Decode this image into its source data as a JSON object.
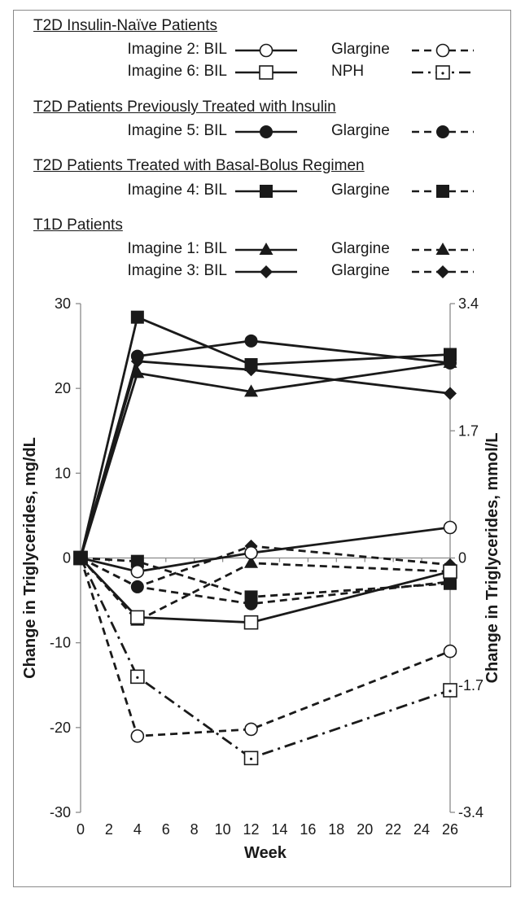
{
  "legend": {
    "groups": [
      {
        "header": "T2D Insulin-Naïve Patients",
        "rows": [
          {
            "left": {
              "label": "Imagine 2: BIL",
              "series": "i2-bil"
            },
            "right": {
              "label": "Glargine",
              "series": "i2-gla"
            }
          },
          {
            "left": {
              "label": "Imagine 6: BIL",
              "series": "i6-bil"
            },
            "right": {
              "label": "NPH",
              "series": "i6-nph"
            }
          }
        ]
      },
      {
        "header": "T2D Patients Previously Treated with Insulin",
        "rows": [
          {
            "left": {
              "label": "Imagine 5: BIL",
              "series": "i5-bil"
            },
            "right": {
              "label": "Glargine",
              "series": "i5-gla"
            }
          }
        ]
      },
      {
        "header": "T2D Patients Treated with Basal-Bolus Regimen",
        "rows": [
          {
            "left": {
              "label": "Imagine 4: BIL",
              "series": "i4-bil"
            },
            "right": {
              "label": "Glargine",
              "series": "i4-gla"
            }
          }
        ]
      },
      {
        "header": "T1D Patients",
        "rows": [
          {
            "left": {
              "label": "Imagine 1: BIL",
              "series": "i1-bil"
            },
            "right": {
              "label": "Glargine",
              "series": "i1-gla"
            }
          },
          {
            "left": {
              "label": "Imagine 3: BIL",
              "series": "i3-bil"
            },
            "right": {
              "label": "Glargine",
              "series": "i3-gla"
            }
          }
        ]
      }
    ]
  },
  "chart_data": {
    "type": "line",
    "xlabel": "Week",
    "ylabel": "Change in Triglycerides, mg/dL",
    "y2label": "Change in Triglycerides, mmol/L",
    "xlim": [
      0,
      26
    ],
    "ylim": [
      -30,
      30
    ],
    "y2lim": [
      -3.4,
      3.4
    ],
    "x_ticks": [
      "0",
      "2",
      "4",
      "6",
      "8",
      "10",
      "12",
      "14",
      "16",
      "18",
      "20",
      "22",
      "24",
      "26"
    ],
    "y_ticks": [
      "30",
      "20",
      "10",
      "0",
      "-10",
      "-20",
      "-30"
    ],
    "y2_ticks": [
      "3.4",
      "1.7",
      "0",
      "-1.7",
      "-3.4"
    ],
    "grid": false,
    "series": [
      {
        "id": "i2-bil",
        "marker": "open-circle",
        "dash": "solid",
        "x": [
          0,
          4,
          12,
          26
        ],
        "values": [
          0,
          -1.6,
          0.6,
          3.6
        ]
      },
      {
        "id": "i2-gla",
        "marker": "open-circle",
        "dash": "dashed",
        "x": [
          0,
          4,
          12,
          26
        ],
        "values": [
          0,
          -21.0,
          -20.2,
          -11.0
        ]
      },
      {
        "id": "i6-bil",
        "marker": "open-square",
        "dash": "solid",
        "x": [
          0,
          4,
          12,
          26
        ],
        "values": [
          0,
          -7.0,
          -7.6,
          -1.6
        ]
      },
      {
        "id": "i6-nph",
        "marker": "dotted-square",
        "dash": "dash-dot",
        "x": [
          0,
          4,
          12,
          26
        ],
        "values": [
          0,
          -14.0,
          -23.6,
          -15.6
        ]
      },
      {
        "id": "i5-bil",
        "marker": "filled-circle",
        "dash": "solid",
        "x": [
          0,
          4,
          12,
          26
        ],
        "values": [
          0,
          23.8,
          25.6,
          23.0
        ]
      },
      {
        "id": "i5-gla",
        "marker": "filled-circle",
        "dash": "dashed",
        "x": [
          0,
          4,
          12,
          26
        ],
        "values": [
          0,
          -3.4,
          -5.4,
          -2.8
        ]
      },
      {
        "id": "i4-bil",
        "marker": "filled-square",
        "dash": "solid",
        "x": [
          0,
          4,
          12,
          26
        ],
        "values": [
          0,
          28.4,
          22.8,
          24.0
        ]
      },
      {
        "id": "i4-gla",
        "marker": "filled-square",
        "dash": "dashed",
        "x": [
          0,
          4,
          12,
          26
        ],
        "values": [
          0,
          -0.4,
          -4.6,
          -3.0
        ]
      },
      {
        "id": "i1-bil",
        "marker": "filled-triangle",
        "dash": "solid",
        "x": [
          0,
          4,
          12,
          26
        ],
        "values": [
          0,
          21.8,
          19.6,
          23.0
        ]
      },
      {
        "id": "i1-gla",
        "marker": "filled-triangle",
        "dash": "dashed",
        "x": [
          0,
          4,
          12,
          26
        ],
        "values": [
          0,
          -7.4,
          -0.6,
          -1.6
        ]
      },
      {
        "id": "i3-bil",
        "marker": "filled-diamond",
        "dash": "solid",
        "x": [
          0,
          4,
          12,
          26
        ],
        "values": [
          0,
          23.2,
          22.2,
          19.4
        ]
      },
      {
        "id": "i3-gla",
        "marker": "filled-diamond",
        "dash": "dashed",
        "x": [
          0,
          4,
          12,
          26
        ],
        "values": [
          0,
          -3.4,
          1.4,
          -0.8
        ]
      }
    ]
  }
}
